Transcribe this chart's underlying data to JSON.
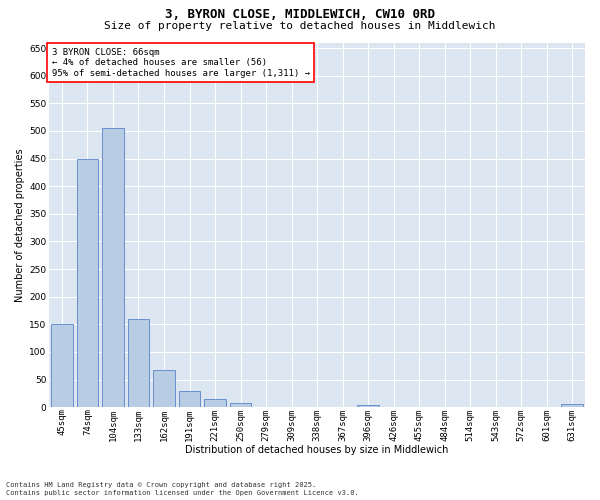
{
  "title_line1": "3, BYRON CLOSE, MIDDLEWICH, CW10 0RD",
  "title_line2": "Size of property relative to detached houses in Middlewich",
  "xlabel": "Distribution of detached houses by size in Middlewich",
  "ylabel": "Number of detached properties",
  "categories": [
    "45sqm",
    "74sqm",
    "104sqm",
    "133sqm",
    "162sqm",
    "191sqm",
    "221sqm",
    "250sqm",
    "279sqm",
    "309sqm",
    "338sqm",
    "367sqm",
    "396sqm",
    "426sqm",
    "455sqm",
    "484sqm",
    "514sqm",
    "543sqm",
    "572sqm",
    "601sqm",
    "631sqm"
  ],
  "values": [
    150,
    450,
    506,
    160,
    67,
    30,
    14,
    8,
    0,
    0,
    0,
    0,
    4,
    0,
    0,
    0,
    0,
    0,
    0,
    0,
    5
  ],
  "bar_color": "#b8cce4",
  "bar_edge_color": "#4472c4",
  "background_color": "#dce6f1",
  "grid_color": "#ffffff",
  "annotation_line1": "3 BYRON CLOSE: 66sqm",
  "annotation_line2": "← 4% of detached houses are smaller (56)",
  "annotation_line3": "95% of semi-detached houses are larger (1,311) →",
  "ylim": [
    0,
    660
  ],
  "yticks": [
    0,
    50,
    100,
    150,
    200,
    250,
    300,
    350,
    400,
    450,
    500,
    550,
    600,
    650
  ],
  "footer_line1": "Contains HM Land Registry data © Crown copyright and database right 2025.",
  "footer_line2": "Contains public sector information licensed under the Open Government Licence v3.0.",
  "title_fontsize": 9,
  "subtitle_fontsize": 8,
  "axis_label_fontsize": 7,
  "tick_fontsize": 6.5,
  "annotation_fontsize": 6.5,
  "footer_fontsize": 5
}
